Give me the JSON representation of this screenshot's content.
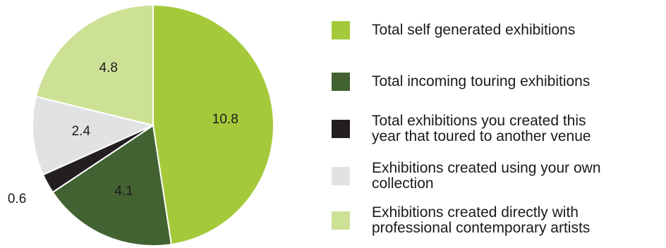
{
  "chart_data": {
    "type": "pie",
    "slices": [
      {
        "label": "Total self generated exhibitions",
        "value": 10.8,
        "value_label": "10.8",
        "color": "#a4c93a"
      },
      {
        "label": "Total incoming touring exhibitions",
        "value": 4.1,
        "value_label": "4.1",
        "color": "#436232"
      },
      {
        "label": "Total exhibitions you created this\nyear that toured to another venue",
        "value": 0.6,
        "value_label": "0.6",
        "color": "#231f20"
      },
      {
        "label": "Exhibitions created using your own\ncollection",
        "value": 2.4,
        "value_label": "2.4",
        "color": "#e1e2e4"
      },
      {
        "label": "Exhibitions created directly with\nprofessional contemporary artists",
        "value": 4.8,
        "value_label": "4.8",
        "color": "#cde196"
      }
    ],
    "start_position": "top, clockwise",
    "legend_position": "right"
  }
}
